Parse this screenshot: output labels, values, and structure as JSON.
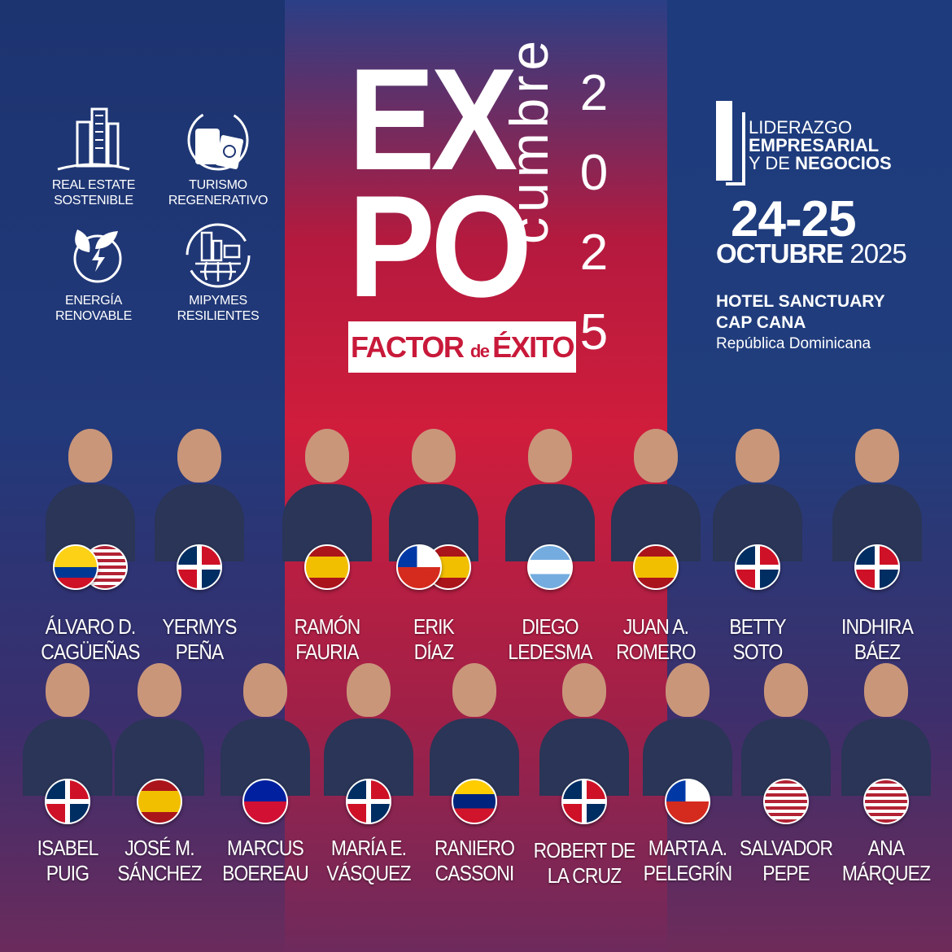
{
  "categories": [
    {
      "icon": "building-icon",
      "line1": "REAL ESTATE",
      "line2": "SOSTENIBLE"
    },
    {
      "icon": "luggage-passport-icon",
      "line1": "TURISMO",
      "line2": "REGENERATIVO"
    },
    {
      "icon": "leaf-energy-icon",
      "line1": "ENERGÍA",
      "line2": "RENOVABLE"
    },
    {
      "icon": "city-globe-icon",
      "line1": "MIPYMES",
      "line2": "RESILIENTES"
    }
  ],
  "title": {
    "line1": "EX",
    "line2": "PO",
    "vertical": "cumbre",
    "year": [
      "2",
      "0",
      "2",
      "5"
    ],
    "factor_a": "FACTOR ",
    "factor_b": "de ",
    "factor_c": "ÉXITO"
  },
  "event": {
    "program_l1": "LIDERAZGO",
    "program_l2": "EMPRESARIAL",
    "program_l3a": "Y DE ",
    "program_l3b": "NEGOCIOS",
    "dates": "24-25",
    "month": "OCTUBRE",
    "year": "2025",
    "venue_l1": "HOTEL SANCTUARY",
    "venue_l2": "CAP CANA",
    "country": "República Dominicana"
  },
  "colors": {
    "red": "#c8193a",
    "blue": "#1d3573",
    "white": "#ffffff"
  },
  "speakers": [
    {
      "l1": "ÁLVARO D.",
      "l2": "CAGÜEÑAS",
      "flags": [
        "CO",
        "US"
      ]
    },
    {
      "l1": "YERMYS",
      "l2": "PEÑA",
      "flags": [
        "DO"
      ]
    },
    {
      "l1": "RAMÓN",
      "l2": "FAURIA",
      "flags": [
        "ES"
      ]
    },
    {
      "l1": "ERIK",
      "l2": "DÍAZ",
      "flags": [
        "CL",
        "ES"
      ]
    },
    {
      "l1": "DIEGO",
      "l2": "LEDESMA",
      "flags": [
        "AR"
      ]
    },
    {
      "l1": "JUAN A.",
      "l2": "ROMERO",
      "flags": [
        "ES"
      ]
    },
    {
      "l1": "BETTY",
      "l2": "SOTO",
      "flags": [
        "DO"
      ]
    },
    {
      "l1": "INDHIRA",
      "l2": "BÁEZ",
      "flags": [
        "DO"
      ]
    },
    {
      "l1": "ISABEL",
      "l2": "PUIG",
      "flags": [
        "DO"
      ]
    },
    {
      "l1": "JOSÉ M.",
      "l2": "SÁNCHEZ",
      "flags": [
        "ES"
      ]
    },
    {
      "l1": "MARCUS",
      "l2": "BOEREAU",
      "flags": [
        "HT"
      ]
    },
    {
      "l1": "MARÍA E.",
      "l2": "VÁSQUEZ",
      "flags": [
        "DO"
      ]
    },
    {
      "l1": "RANIERO",
      "l2": "CASSONI",
      "flags": [
        "VE"
      ]
    },
    {
      "l1": "ROBERT DE",
      "l2": "LA CRUZ",
      "flags": [
        "DO"
      ]
    },
    {
      "l1": "MARTA A.",
      "l2": "PELEGRÍN",
      "flags": [
        "CL"
      ]
    },
    {
      "l1": "SALVADOR",
      "l2": "PEPE",
      "flags": [
        "US"
      ]
    },
    {
      "l1": "ANA",
      "l2": "MÁRQUEZ",
      "flags": [
        "US"
      ]
    }
  ]
}
